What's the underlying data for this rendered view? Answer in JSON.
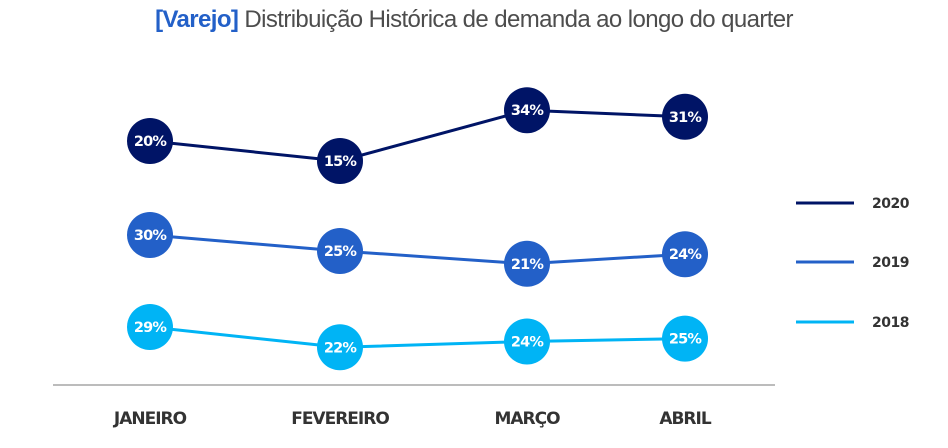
{
  "chart_data": {
    "type": "line",
    "title_accent": "[Varejo]",
    "title_rest": " Distribuição Histórica de demanda ao longo do quarter",
    "categories": [
      "JANEIRO",
      "FEVEREIRO",
      "MARÇO",
      "ABRIL"
    ],
    "series": [
      {
        "name": "2020",
        "color": "#001466",
        "values": [
          20,
          15,
          34,
          31
        ],
        "labels": [
          "20%",
          "15%",
          "34%",
          "31%"
        ]
      },
      {
        "name": "2019",
        "color": "#2360c8",
        "values": [
          30,
          25,
          21,
          24
        ],
        "labels": [
          "30%",
          "25%",
          "21%",
          "24%"
        ]
      },
      {
        "name": "2018",
        "color": "#00b4f5",
        "values": [
          29,
          22,
          24,
          25
        ],
        "labels": [
          "29%",
          "22%",
          "24%",
          "25%"
        ]
      }
    ],
    "xlabel": "",
    "ylabel": "",
    "unit": "%",
    "grid": false,
    "legend_position": "right"
  }
}
